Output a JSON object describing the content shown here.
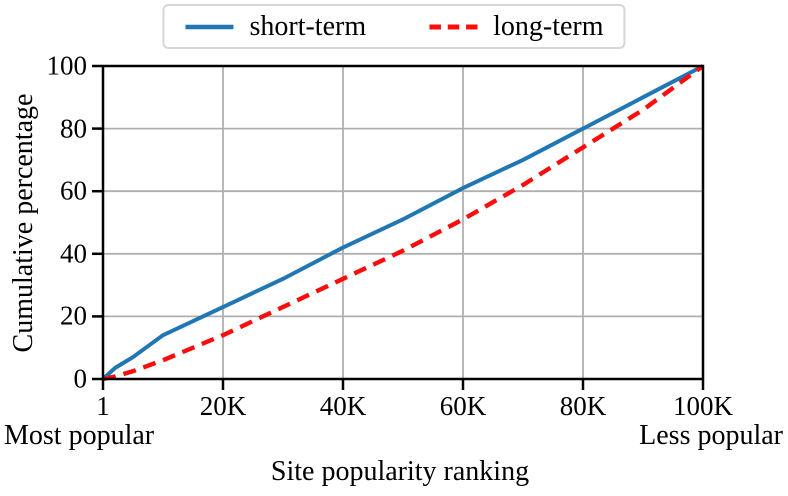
{
  "legend": {
    "items": [
      {
        "label": "short-term",
        "color": "#1f77b4",
        "style": "solid"
      },
      {
        "label": "long-term",
        "color": "#fb0d0d",
        "style": "dashed"
      }
    ]
  },
  "chart_data": {
    "type": "line",
    "title": "",
    "xlabel": "Site popularity ranking",
    "ylabel": "Cumulative percentage",
    "x_axis_note_left": "Most popular",
    "x_axis_note_right": "Less popular",
    "xlim": [
      1,
      100000
    ],
    "ylim": [
      0,
      100
    ],
    "x_ticks": [
      1,
      20000,
      40000,
      60000,
      80000,
      100000
    ],
    "x_tick_labels": [
      "1",
      "20K",
      "40K",
      "60K",
      "80K",
      "100K"
    ],
    "y_ticks": [
      0,
      20,
      40,
      60,
      80,
      100
    ],
    "y_tick_labels": [
      "0",
      "20",
      "40",
      "60",
      "80",
      "100"
    ],
    "grid": true,
    "grid_color": "#b0b0b0",
    "axis_color": "#000000",
    "legend_position": "top-center",
    "series": [
      {
        "name": "short-term",
        "color": "#1f77b4",
        "line_style": "solid",
        "x": [
          1,
          2000,
          5000,
          10000,
          20000,
          30000,
          40000,
          50000,
          60000,
          70000,
          80000,
          90000,
          100000
        ],
        "y": [
          0,
          3.5,
          7,
          14,
          23,
          32,
          42,
          51,
          61,
          70,
          80,
          90,
          100
        ]
      },
      {
        "name": "long-term",
        "color": "#fb0d0d",
        "line_style": "dashed",
        "x": [
          1,
          2000,
          5000,
          10000,
          20000,
          30000,
          40000,
          50000,
          60000,
          70000,
          80000,
          90000,
          100000
        ],
        "y": [
          0,
          0.8,
          2.5,
          6,
          14,
          23,
          32,
          41,
          51,
          62,
          74,
          86,
          100
        ]
      }
    ]
  }
}
